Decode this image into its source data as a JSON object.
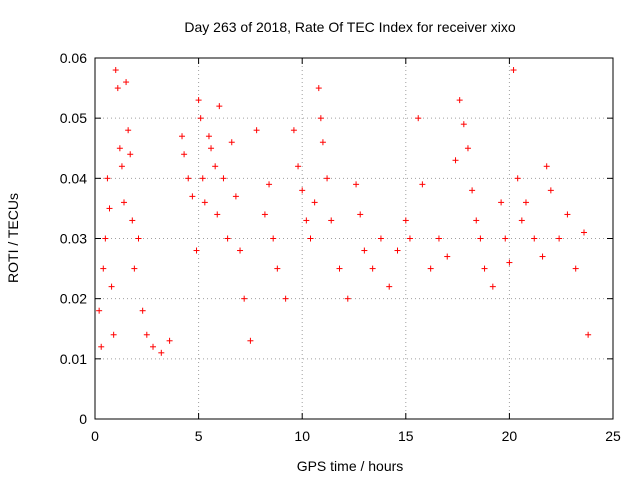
{
  "chart_data": {
    "type": "scatter",
    "title": "Day 263 of 2018, Rate Of TEC Index for receiver xixo",
    "xlabel": "GPS time / hours",
    "ylabel": "ROTI / TECUs",
    "xlim": [
      0,
      25
    ],
    "ylim": [
      0,
      0.06
    ],
    "xticks": [
      "0",
      "5",
      "10",
      "15",
      "20",
      "25"
    ],
    "yticks": [
      "0",
      "0.01",
      "0.02",
      "0.03",
      "0.04",
      "0.05",
      "0.06"
    ],
    "grid": true,
    "marker": "+",
    "color": "#ff0000",
    "series": [
      {
        "values": [
          [
            0.2,
            0.018
          ],
          [
            0.3,
            0.012
          ],
          [
            0.4,
            0.025
          ],
          [
            0.5,
            0.03
          ],
          [
            0.6,
            0.04
          ],
          [
            0.7,
            0.035
          ],
          [
            0.8,
            0.022
          ],
          [
            0.9,
            0.014
          ],
          [
            1.0,
            0.058
          ],
          [
            1.1,
            0.055
          ],
          [
            1.2,
            0.045
          ],
          [
            1.3,
            0.042
          ],
          [
            1.4,
            0.036
          ],
          [
            1.5,
            0.056
          ],
          [
            1.6,
            0.048
          ],
          [
            1.7,
            0.044
          ],
          [
            1.8,
            0.033
          ],
          [
            1.9,
            0.025
          ],
          [
            2.1,
            0.03
          ],
          [
            2.3,
            0.018
          ],
          [
            2.5,
            0.014
          ],
          [
            2.8,
            0.012
          ],
          [
            3.2,
            0.011
          ],
          [
            3.6,
            0.013
          ],
          [
            4.2,
            0.047
          ],
          [
            4.3,
            0.044
          ],
          [
            4.5,
            0.04
          ],
          [
            4.7,
            0.037
          ],
          [
            4.9,
            0.028
          ],
          [
            5.0,
            0.053
          ],
          [
            5.1,
            0.05
          ],
          [
            5.2,
            0.04
          ],
          [
            5.3,
            0.036
          ],
          [
            5.5,
            0.047
          ],
          [
            5.6,
            0.045
          ],
          [
            5.8,
            0.042
          ],
          [
            5.9,
            0.034
          ],
          [
            6.0,
            0.052
          ],
          [
            6.2,
            0.04
          ],
          [
            6.4,
            0.03
          ],
          [
            6.6,
            0.046
          ],
          [
            6.8,
            0.037
          ],
          [
            7.0,
            0.028
          ],
          [
            7.2,
            0.02
          ],
          [
            7.5,
            0.013
          ],
          [
            7.8,
            0.048
          ],
          [
            8.2,
            0.034
          ],
          [
            8.4,
            0.039
          ],
          [
            8.6,
            0.03
          ],
          [
            8.8,
            0.025
          ],
          [
            9.2,
            0.02
          ],
          [
            9.6,
            0.048
          ],
          [
            9.8,
            0.042
          ],
          [
            10.0,
            0.038
          ],
          [
            10.2,
            0.033
          ],
          [
            10.4,
            0.03
          ],
          [
            10.6,
            0.036
          ],
          [
            10.8,
            0.055
          ],
          [
            10.9,
            0.05
          ],
          [
            11.0,
            0.046
          ],
          [
            11.2,
            0.04
          ],
          [
            11.4,
            0.033
          ],
          [
            11.8,
            0.025
          ],
          [
            12.2,
            0.02
          ],
          [
            12.6,
            0.039
          ],
          [
            12.8,
            0.034
          ],
          [
            13.0,
            0.028
          ],
          [
            13.4,
            0.025
          ],
          [
            13.8,
            0.03
          ],
          [
            14.2,
            0.022
          ],
          [
            14.6,
            0.028
          ],
          [
            15.0,
            0.033
          ],
          [
            15.2,
            0.03
          ],
          [
            15.6,
            0.05
          ],
          [
            15.8,
            0.039
          ],
          [
            16.2,
            0.025
          ],
          [
            16.6,
            0.03
          ],
          [
            17.0,
            0.027
          ],
          [
            17.4,
            0.043
          ],
          [
            17.6,
            0.053
          ],
          [
            17.8,
            0.049
          ],
          [
            18.0,
            0.045
          ],
          [
            18.2,
            0.038
          ],
          [
            18.4,
            0.033
          ],
          [
            18.6,
            0.03
          ],
          [
            18.8,
            0.025
          ],
          [
            19.2,
            0.022
          ],
          [
            19.6,
            0.036
          ],
          [
            19.8,
            0.03
          ],
          [
            20.0,
            0.026
          ],
          [
            20.2,
            0.058
          ],
          [
            20.4,
            0.04
          ],
          [
            20.6,
            0.033
          ],
          [
            20.8,
            0.036
          ],
          [
            21.2,
            0.03
          ],
          [
            21.6,
            0.027
          ],
          [
            21.8,
            0.042
          ],
          [
            22.0,
            0.038
          ],
          [
            22.4,
            0.03
          ],
          [
            22.8,
            0.034
          ],
          [
            23.2,
            0.025
          ],
          [
            23.6,
            0.031
          ],
          [
            23.8,
            0.014
          ]
        ]
      }
    ]
  }
}
